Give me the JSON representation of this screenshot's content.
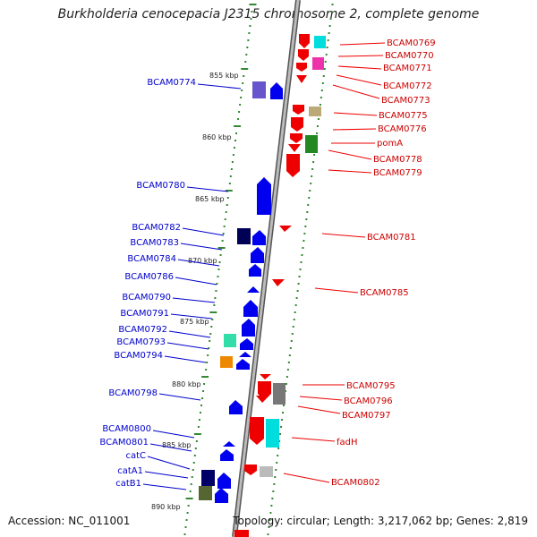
{
  "title": "Burkholderia cenocepacia J2315 chromosome 2, complete genome",
  "footer": {
    "accession": "Accession: NC_011001",
    "summary": "Topology: circular; Length: 3,217,062 bp; Genes: 2,819"
  },
  "ticks": [
    "855 kbp",
    "860 kbp",
    "865 kbp",
    "870 kbp",
    "875 kbp",
    "880 kbp",
    "885 kbp",
    "890 kbp"
  ],
  "forward_genes": [
    "BCAM0769",
    "BCAM0770",
    "BCAM0771",
    "BCAM0772",
    "BCAM0773",
    "BCAM0775",
    "BCAM0776",
    "pomA",
    "BCAM0778",
    "BCAM0779",
    "BCAM0781",
    "BCAM0785",
    "BCAM0795",
    "BCAM0796",
    "BCAM0797",
    "fadH",
    "BCAM0802"
  ],
  "reverse_genes": [
    "BCAM0774",
    "BCAM0780",
    "BCAM0782",
    "BCAM0783",
    "BCAM0784",
    "BCAM0786",
    "BCAM0790",
    "BCAM0791",
    "BCAM0792",
    "BCAM0793",
    "BCAM0794",
    "BCAM0798",
    "BCAM0800",
    "BCAM0801",
    "catC",
    "catA1",
    "catB1"
  ],
  "colors": {
    "forward": "#ee0000",
    "reverse": "#0000cc",
    "backbone": "#888888",
    "tick": "#338833"
  }
}
